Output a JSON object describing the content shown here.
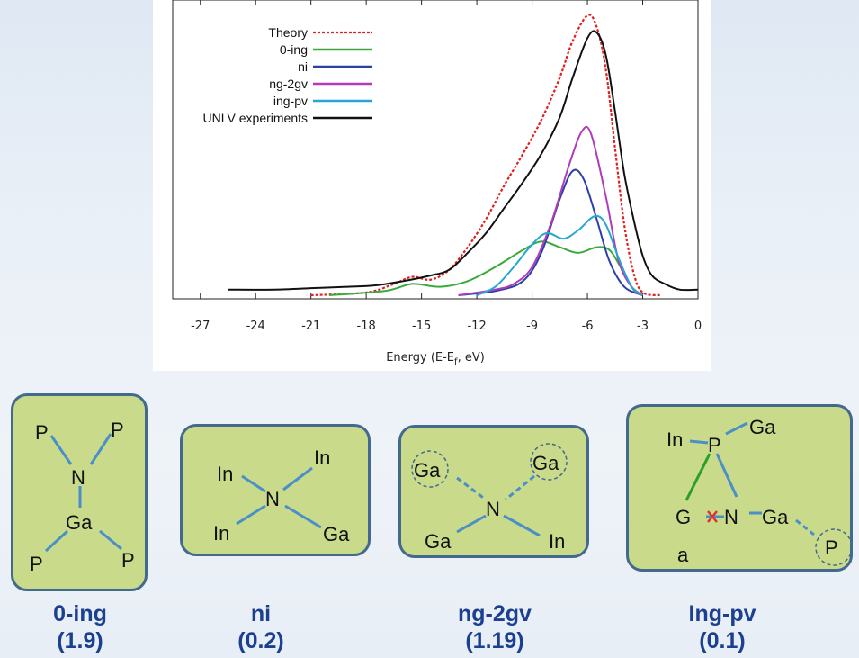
{
  "chart_data": {
    "type": "line",
    "xlabel": "Energy (E-E",
    "xlabel_sub": "f",
    "xlabel_tail": ", eV)",
    "xlim": [
      -28.5,
      0
    ],
    "ylim": [
      0,
      1
    ],
    "x_ticks": [
      "-27",
      "-24",
      "-21",
      "-18",
      "-15",
      "-12",
      "-9",
      "-6",
      "-3",
      "0"
    ],
    "legend_placement": "top-left",
    "series": [
      {
        "name": "Theory",
        "color": "#e02020",
        "dashed": true,
        "points": [
          [
            -21,
            0
          ],
          [
            -18,
            0.01
          ],
          [
            -16.5,
            0.04
          ],
          [
            -15.5,
            0.065
          ],
          [
            -14.5,
            0.055
          ],
          [
            -13.5,
            0.09
          ],
          [
            -12.5,
            0.17
          ],
          [
            -11.5,
            0.27
          ],
          [
            -10.5,
            0.39
          ],
          [
            -9.5,
            0.5
          ],
          [
            -8.5,
            0.62
          ],
          [
            -7.5,
            0.77
          ],
          [
            -6.8,
            0.9
          ],
          [
            -6.0,
            0.99
          ],
          [
            -5.5,
            0.95
          ],
          [
            -5.0,
            0.8
          ],
          [
            -4.5,
            0.52
          ],
          [
            -4.0,
            0.25
          ],
          [
            -3.5,
            0.08
          ],
          [
            -3.0,
            0.01
          ],
          [
            -2,
            0
          ]
        ]
      },
      {
        "name": "0-ing",
        "color": "#3aab3a",
        "dashed": false,
        "points": [
          [
            -20,
            0
          ],
          [
            -17,
            0.015
          ],
          [
            -15.5,
            0.04
          ],
          [
            -14,
            0.03
          ],
          [
            -12.5,
            0.05
          ],
          [
            -11,
            0.1
          ],
          [
            -9.5,
            0.16
          ],
          [
            -8.5,
            0.19
          ],
          [
            -7.5,
            0.17
          ],
          [
            -6.5,
            0.15
          ],
          [
            -5.5,
            0.17
          ],
          [
            -4.8,
            0.16
          ],
          [
            -4.2,
            0.1
          ],
          [
            -3.6,
            0.03
          ],
          [
            -3,
            0
          ]
        ]
      },
      {
        "name": "ni",
        "color": "#2b3fa8",
        "dashed": false,
        "points": [
          [
            -13,
            0
          ],
          [
            -11,
            0.015
          ],
          [
            -9.5,
            0.05
          ],
          [
            -8.5,
            0.15
          ],
          [
            -7.5,
            0.34
          ],
          [
            -6.8,
            0.44
          ],
          [
            -6.2,
            0.41
          ],
          [
            -5.5,
            0.27
          ],
          [
            -4.8,
            0.12
          ],
          [
            -4.0,
            0.03
          ],
          [
            -3.0,
            0
          ]
        ]
      },
      {
        "name": "ng-2gv",
        "color": "#b03cb8",
        "dashed": false,
        "points": [
          [
            -13,
            0
          ],
          [
            -11,
            0.02
          ],
          [
            -10,
            0.04
          ],
          [
            -9,
            0.1
          ],
          [
            -8,
            0.25
          ],
          [
            -7,
            0.46
          ],
          [
            -6.3,
            0.58
          ],
          [
            -5.8,
            0.57
          ],
          [
            -5.0,
            0.35
          ],
          [
            -4.3,
            0.12
          ],
          [
            -3.5,
            0.02
          ],
          [
            -3.0,
            0
          ]
        ]
      },
      {
        "name": "ing-pv",
        "color": "#27a6d4",
        "dashed": false,
        "points": [
          [
            -12,
            0
          ],
          [
            -11,
            0.03
          ],
          [
            -10,
            0.1
          ],
          [
            -9,
            0.18
          ],
          [
            -8.2,
            0.22
          ],
          [
            -7.3,
            0.2
          ],
          [
            -6.5,
            0.23
          ],
          [
            -5.6,
            0.28
          ],
          [
            -5.0,
            0.25
          ],
          [
            -4.3,
            0.13
          ],
          [
            -3.6,
            0.03
          ],
          [
            -3.0,
            0
          ]
        ]
      },
      {
        "name": "UNLV experiments",
        "color": "#111111",
        "dashed": false,
        "points": [
          [
            -25.5,
            0.02
          ],
          [
            -23,
            0.02
          ],
          [
            -21,
            0.025
          ],
          [
            -19,
            0.03
          ],
          [
            -17.5,
            0.035
          ],
          [
            -16,
            0.05
          ],
          [
            -14.5,
            0.07
          ],
          [
            -13.5,
            0.09
          ],
          [
            -12.5,
            0.15
          ],
          [
            -11.5,
            0.22
          ],
          [
            -10.5,
            0.31
          ],
          [
            -9.5,
            0.4
          ],
          [
            -8.5,
            0.5
          ],
          [
            -7.5,
            0.63
          ],
          [
            -6.8,
            0.77
          ],
          [
            -6.0,
            0.91
          ],
          [
            -5.5,
            0.93
          ],
          [
            -5.0,
            0.85
          ],
          [
            -4.5,
            0.65
          ],
          [
            -4.0,
            0.43
          ],
          [
            -3.5,
            0.27
          ],
          [
            -3.0,
            0.14
          ],
          [
            -2.5,
            0.07
          ],
          [
            -1.8,
            0.04
          ],
          [
            -1.0,
            0.02
          ],
          [
            0,
            0.02
          ]
        ]
      }
    ]
  },
  "structures": [
    {
      "id": "0-ing",
      "caption_name": "0-ing",
      "caption_value": "(1.9)",
      "atoms": [
        "P",
        "P",
        "N",
        "Ga",
        "P",
        "P"
      ]
    },
    {
      "id": "ni",
      "caption_name": "ni",
      "caption_value": "(0.2)",
      "atoms": [
        "In",
        "In",
        "N",
        "In",
        "Ga"
      ]
    },
    {
      "id": "ng-2gv",
      "caption_name": "ng-2gv",
      "caption_value": "(1.19)",
      "atoms": [
        "Ga",
        "Ga",
        "N",
        "Ga",
        "In"
      ]
    },
    {
      "id": "ing-pv",
      "caption_name": "Ing-pv",
      "caption_value": "(0.1)",
      "atoms": [
        "In",
        "P",
        "Ga",
        "G",
        "N",
        "Ga",
        "a",
        "P"
      ]
    }
  ],
  "colors": {
    "box_fill": "#c9da8a",
    "box_border": "#44698f",
    "bond": "#4a8fc8",
    "bond_green": "#2aa02a",
    "vacancy_mark": "#e03030",
    "caption": "#1b3f91"
  }
}
